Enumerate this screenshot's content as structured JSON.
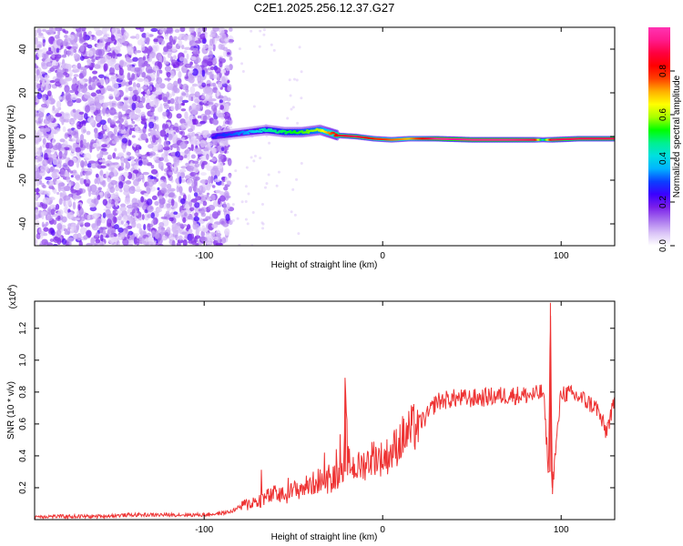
{
  "title": "C2E1.2025.256.12.37.G27",
  "chart_data": [
    {
      "type": "heatmap",
      "name": "spectrogram",
      "xlabel": "Height of straight line (km)",
      "ylabel": "Frequency (Hz)",
      "xlim": [
        -195,
        130
      ],
      "ylim": [
        -50,
        50
      ],
      "xticks": [
        -100,
        0,
        100
      ],
      "xtick_labels": [
        "-100",
        "0",
        "100"
      ],
      "yticks": [
        -40,
        -20,
        0,
        20,
        40
      ],
      "ytick_labels": [
        "-40",
        "-20",
        "0",
        "20",
        "40"
      ],
      "colorbar": {
        "label": "Normalized spectral amplitude",
        "range": [
          0,
          1
        ],
        "ticks": [
          0.0,
          0.2,
          0.4,
          0.6,
          0.8
        ],
        "tick_labels": [
          "0.0",
          "0.2",
          "0.4",
          "0.6",
          "0.8"
        ],
        "colors": [
          "#ffffff",
          "#d9c2f7",
          "#a872ee",
          "#7a1fea",
          "#3b00ff",
          "#0a40ff",
          "#00b4ff",
          "#00e0e0",
          "#00f090",
          "#00ff00",
          "#a8ff00",
          "#ffff00",
          "#ffb000",
          "#ff4000",
          "#ff0000",
          "#ff0040",
          "#ff1a8c",
          "#ff33b2"
        ]
      },
      "noise_region_km": [
        -195,
        -85
      ],
      "signal_track": {
        "heights_km": [
          -95,
          -85,
          -75,
          -65,
          -55,
          -45,
          -35,
          -25,
          -15,
          -5,
          5,
          15,
          30,
          50,
          70,
          85,
          90,
          95,
          110,
          130
        ],
        "frequency_hz": [
          0,
          1,
          2,
          3,
          2,
          2,
          3,
          0.5,
          0,
          -1,
          -1.5,
          -1,
          -1,
          -1.5,
          -1.5,
          -1.5,
          -1.5,
          -1.5,
          -1,
          -1
        ],
        "amplitude": [
          0.25,
          0.3,
          0.35,
          0.45,
          0.5,
          0.55,
          0.6,
          0.85,
          0.9,
          0.8,
          0.75,
          0.7,
          0.95,
          0.95,
          0.95,
          0.9,
          0.4,
          0.9,
          0.9,
          0.9
        ]
      }
    },
    {
      "type": "line",
      "name": "snr",
      "xlabel": "Height of straight line (km)",
      "ylabel": "SNR (10 * v/v)",
      "scale_note": "(x10^4)",
      "scale_base": "(x10",
      "scale_exp": "4",
      "scale_close": ")",
      "xlim": [
        -195,
        130
      ],
      "ylim": [
        0,
        1.37
      ],
      "xticks": [
        -100,
        0,
        100
      ],
      "xtick_labels": [
        "-100",
        "0",
        "100"
      ],
      "yticks": [
        0.2,
        0.4,
        0.6,
        0.8,
        1.0,
        1.2
      ],
      "ytick_labels": [
        "0.2",
        "0.4",
        "0.6",
        "0.8",
        "1.0",
        "1.2"
      ],
      "color": "#ee3333",
      "series": [
        {
          "name": "SNR",
          "x": [
            -195,
            -180,
            -160,
            -140,
            -120,
            -100,
            -90,
            -85,
            -80,
            -75,
            -70,
            -65,
            -60,
            -55,
            -50,
            -45,
            -40,
            -35,
            -30,
            -25,
            -22,
            -21,
            -20,
            -15,
            -10,
            -5,
            0,
            5,
            10,
            15,
            20,
            25,
            30,
            40,
            50,
            60,
            70,
            80,
            85,
            90,
            93,
            94,
            95,
            100,
            110,
            120,
            125,
            130
          ],
          "y": [
            0.02,
            0.02,
            0.02,
            0.03,
            0.03,
            0.03,
            0.04,
            0.05,
            0.08,
            0.1,
            0.12,
            0.14,
            0.16,
            0.15,
            0.18,
            0.2,
            0.22,
            0.25,
            0.24,
            0.28,
            0.35,
            0.85,
            0.36,
            0.32,
            0.35,
            0.4,
            0.38,
            0.42,
            0.5,
            0.55,
            0.6,
            0.65,
            0.74,
            0.76,
            0.76,
            0.77,
            0.78,
            0.78,
            0.78,
            0.8,
            0.3,
            1.36,
            0.2,
            0.8,
            0.77,
            0.7,
            0.55,
            0.73
          ]
        }
      ]
    }
  ]
}
